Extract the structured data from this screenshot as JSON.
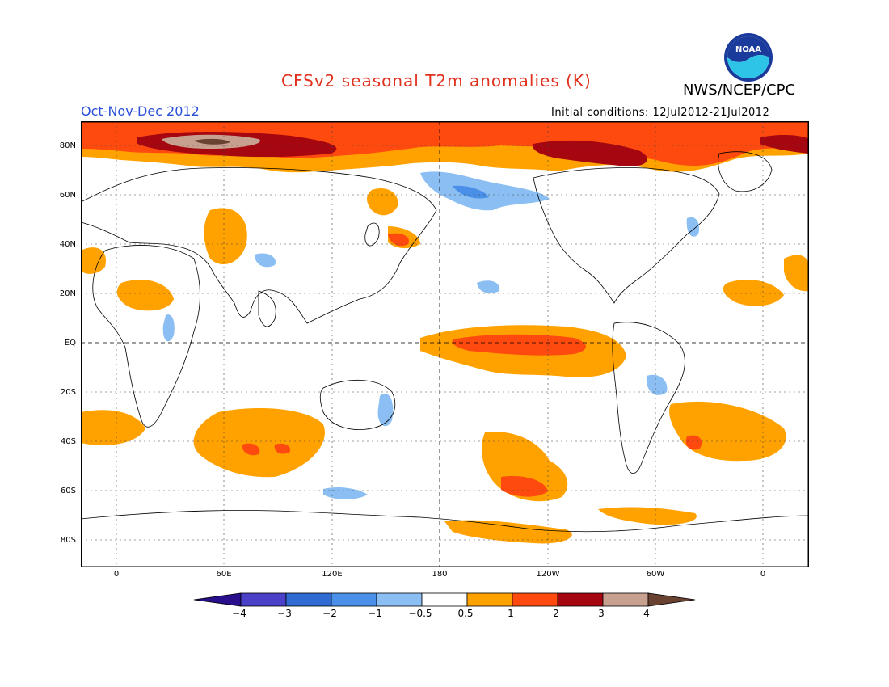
{
  "header": {
    "title": "CFSv2 seasonal T2m anomalies (K)",
    "agency": "NWS/NCEP/CPC",
    "season": "Oct-Nov-Dec 2012",
    "initial_conditions": "Initial conditions: 12Jul2012-21Jul2012",
    "logo_text": "NOAA"
  },
  "axes": {
    "lat_labels": [
      "80N",
      "60N",
      "40N",
      "20N",
      "EQ",
      "20S",
      "40S",
      "60S",
      "80S"
    ],
    "lon_labels": [
      "0",
      "60E",
      "120E",
      "180",
      "120W",
      "60W",
      "0"
    ]
  },
  "colorbar": {
    "labels": [
      "−4",
      "−3",
      "−2",
      "−1",
      "−0.5",
      "0.5",
      "1",
      "2",
      "3",
      "4"
    ],
    "colors": [
      "#2a0f8c",
      "#4b40c8",
      "#2f6bd2",
      "#4a90e8",
      "#8bbef2",
      "#ffffff",
      "#ffa200",
      "#ff4a0f",
      "#a5060f",
      "#c8a090",
      "#6a4232"
    ]
  },
  "anomaly_colors": {
    "weak_cold": "#8bbef2",
    "cold": "#4a90e8",
    "weak_warm": "#ffa200",
    "warm": "#ff4a0f",
    "hot": "#a5060f",
    "very_hot": "#c8a090",
    "extreme": "#6a4232"
  }
}
